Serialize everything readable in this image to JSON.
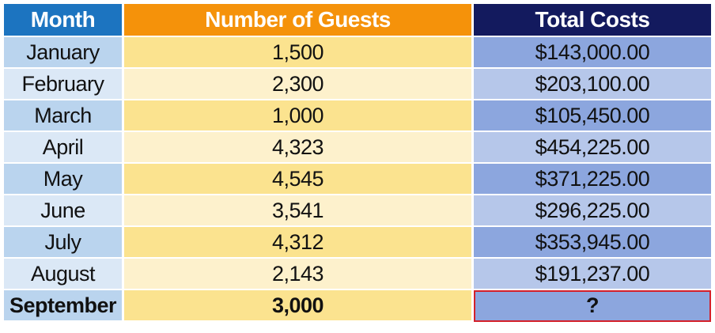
{
  "table": {
    "headers": {
      "month": "Month",
      "guests": "Number of Guests",
      "costs": "Total Costs"
    },
    "rows": [
      {
        "month": "January",
        "guests": "1,500",
        "costs": "$143,000.00"
      },
      {
        "month": "February",
        "guests": "2,300",
        "costs": "$203,100.00"
      },
      {
        "month": "March",
        "guests": "1,000",
        "costs": "$105,450.00"
      },
      {
        "month": "April",
        "guests": "4,323",
        "costs": "$454,225.00"
      },
      {
        "month": "May",
        "guests": "4,545",
        "costs": "$371,225.00"
      },
      {
        "month": "June",
        "guests": "3,541",
        "costs": "$296,225.00"
      },
      {
        "month": "July",
        "guests": "4,312",
        "costs": "$353,945.00"
      },
      {
        "month": "August",
        "guests": "2,143",
        "costs": "$191,237.00"
      },
      {
        "month": "September",
        "guests": "3,000",
        "costs": "?"
      }
    ]
  },
  "colors": {
    "month_header": "#1c74c0",
    "guests_header": "#f5920a",
    "costs_header": "#131a5e",
    "highlight_border": "#d4202a"
  }
}
